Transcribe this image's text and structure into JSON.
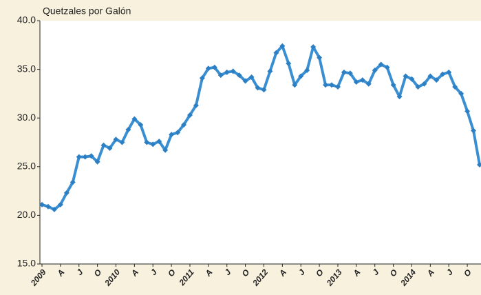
{
  "chart_data": {
    "type": "line",
    "y_label": "Quetzales por Galón",
    "categories": [
      "2009",
      null,
      null,
      "A",
      null,
      null,
      "J",
      null,
      null,
      "O",
      null,
      null,
      "2010",
      null,
      null,
      "A",
      null,
      null,
      "J",
      null,
      null,
      "O",
      null,
      null,
      "2011",
      null,
      null,
      "A",
      null,
      null,
      "J",
      null,
      null,
      "O",
      null,
      null,
      "2012",
      null,
      null,
      "A",
      null,
      null,
      "J",
      null,
      null,
      "O",
      null,
      null,
      "2013",
      null,
      null,
      "A",
      null,
      null,
      "J",
      null,
      null,
      "O",
      null,
      null,
      "2014",
      null,
      null,
      "A",
      null,
      null,
      "J",
      null,
      null,
      "O",
      null,
      null
    ],
    "values": [
      21.1,
      20.9,
      20.6,
      21.1,
      22.3,
      23.4,
      26.0,
      26.0,
      26.1,
      25.5,
      27.2,
      26.9,
      27.8,
      27.5,
      28.8,
      29.9,
      29.3,
      27.5,
      27.3,
      27.6,
      26.7,
      28.3,
      28.5,
      29.3,
      30.3,
      31.3,
      34.1,
      35.1,
      35.2,
      34.4,
      34.7,
      34.8,
      34.4,
      33.8,
      34.2,
      33.1,
      32.9,
      34.8,
      36.7,
      37.4,
      35.6,
      33.4,
      34.3,
      34.9,
      37.3,
      36.2,
      33.4,
      33.4,
      33.2,
      34.7,
      34.6,
      33.7,
      33.9,
      33.5,
      34.9,
      35.5,
      35.2,
      33.4,
      32.2,
      34.3,
      34.0,
      33.2,
      33.5,
      34.3,
      33.9,
      34.5,
      34.7,
      33.2,
      32.5,
      30.7,
      28.7,
      25.2
    ],
    "color": "#3a8fd3",
    "ylim": [
      15,
      40
    ],
    "yticks": [
      {
        "value": 15,
        "label": "15.0"
      },
      {
        "value": 20,
        "label": "20.0"
      },
      {
        "value": 25,
        "label": "25.0"
      },
      {
        "value": 30,
        "label": "30.0"
      },
      {
        "value": 35,
        "label": "35.0"
      },
      {
        "value": 40,
        "label": "40.0"
      }
    ]
  }
}
